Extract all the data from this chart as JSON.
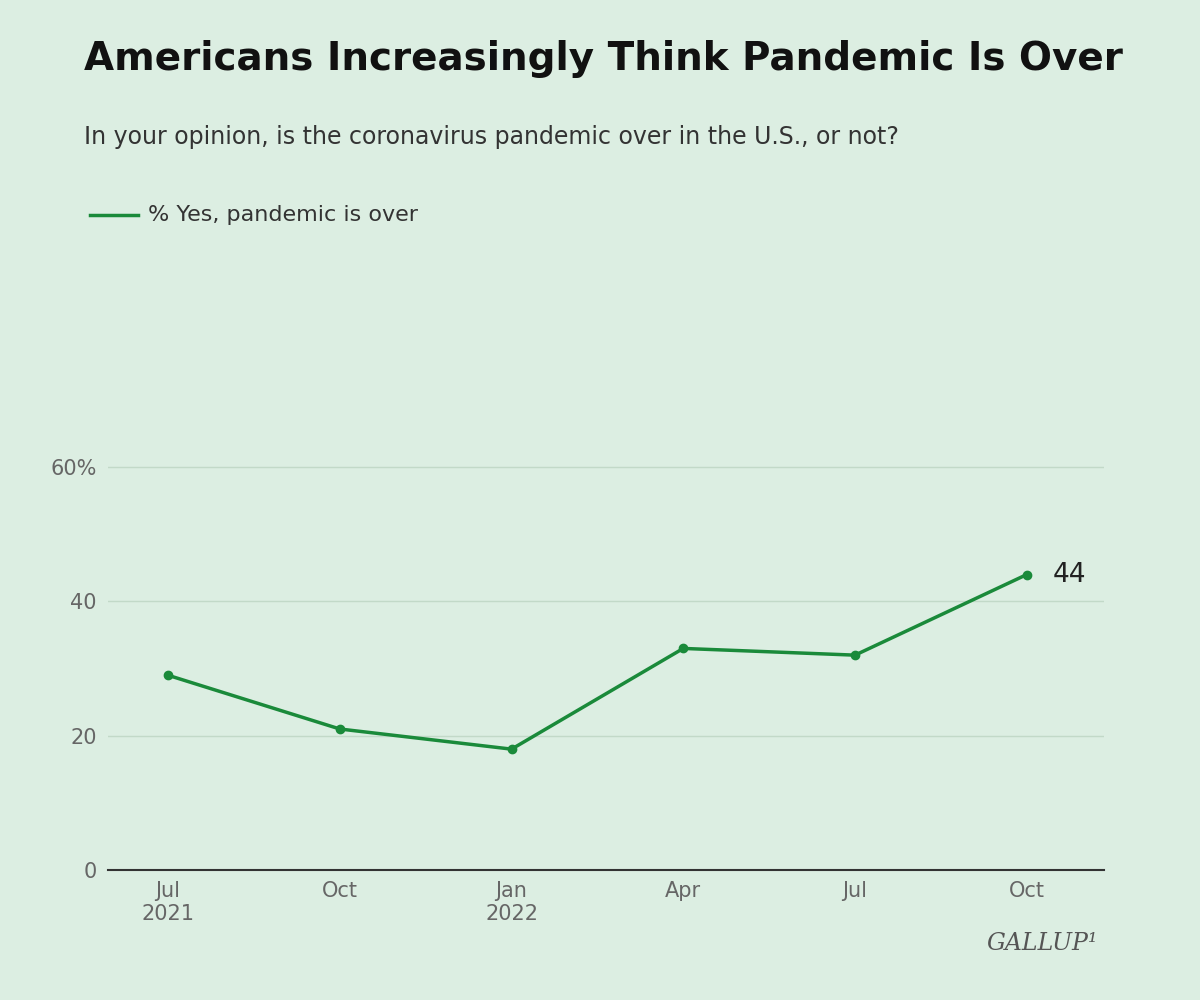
{
  "title": "Americans Increasingly Think Pandemic Is Over",
  "subtitle": "In your opinion, is the coronavirus pandemic over in the U.S., or not?",
  "legend_label": "% Yes, pandemic is over",
  "background_color": "#dceee2",
  "line_color": "#1a8a3a",
  "x_labels": [
    "Jul\n2021",
    "Oct",
    "Jan\n2022",
    "Apr",
    "Jul",
    "Oct"
  ],
  "x_values": [
    0,
    1,
    2,
    3,
    4,
    5
  ],
  "y_values": [
    29,
    21,
    18,
    33,
    32,
    44
  ],
  "last_label": "44",
  "yticks": [
    0,
    20,
    40,
    60
  ],
  "ytick_labels": [
    "0",
    "20",
    "40",
    "60%"
  ],
  "ylim": [
    0,
    70
  ],
  "grid_color": "#c2d9c8",
  "tick_color": "#666666",
  "gallup_text": "GALLUP¹",
  "title_fontsize": 28,
  "subtitle_fontsize": 17,
  "legend_fontsize": 16,
  "axis_fontsize": 15,
  "annotation_fontsize": 19,
  "gallup_fontsize": 17
}
